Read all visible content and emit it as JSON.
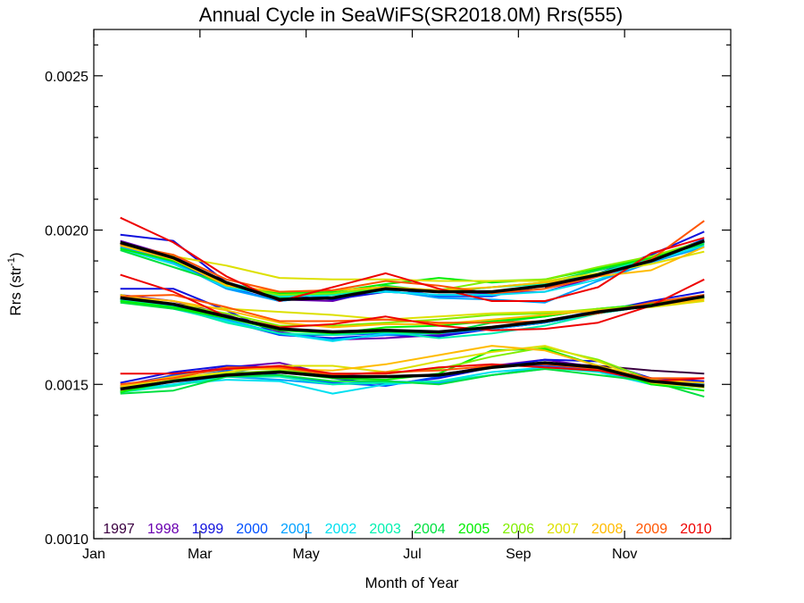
{
  "chart_data": {
    "type": "line",
    "title": "Annual Cycle in SeaWiFS(SR2018.0M) Rrs(555)",
    "xlabel": "Month of Year",
    "ylabel": "Rrs (str",
    "ylabel_sup": "-1",
    "ylabel_close": ")",
    "xlim": [
      0,
      12
    ],
    "ylim": [
      0.001,
      0.00265
    ],
    "x_ticks": [
      {
        "value": 0,
        "label": "Jan"
      },
      {
        "value": 2,
        "label": "Mar"
      },
      {
        "value": 4,
        "label": "May"
      },
      {
        "value": 6,
        "label": "Jul"
      },
      {
        "value": 8,
        "label": "Sep"
      },
      {
        "value": 10,
        "label": "Nov"
      }
    ],
    "y_ticks": [
      {
        "value": 0.001,
        "label": "0.0010"
      },
      {
        "value": 0.0015,
        "label": "0.0015"
      },
      {
        "value": 0.002,
        "label": "0.0020"
      },
      {
        "value": 0.0025,
        "label": "0.0025"
      }
    ],
    "x": [
      0.5,
      1.5,
      2.5,
      3.5,
      4.5,
      5.5,
      6.5,
      7.5,
      8.5,
      9.5,
      10.5,
      11.5
    ],
    "groups": [
      {
        "climatology": [
          0.00196,
          0.00191,
          0.00183,
          0.001775,
          0.00178,
          0.00181,
          0.0018,
          0.0018,
          0.00182,
          0.001855,
          0.0019,
          0.001965
        ],
        "series": [
          {
            "name": "1997",
            "color": "#3a0040",
            "values": [
              null,
              null,
              null,
              null,
              null,
              null,
              null,
              null,
              0.001815,
              0.00185,
              0.001905,
              0.00196
            ]
          },
          {
            "name": "1998",
            "color": "#6a00b0",
            "values": [
              0.001965,
              0.001915,
              0.00183,
              0.001775,
              0.00177,
              0.00181,
              0.0018,
              0.001795,
              0.0018,
              0.00185,
              0.0019,
              0.001965
            ]
          },
          {
            "name": "1999",
            "color": "#1010dd",
            "values": [
              0.001985,
              0.001965,
              0.00183,
              0.00179,
              0.001775,
              0.0018,
              0.00179,
              0.00179,
              0.00182,
              0.00186,
              0.00192,
              0.001995
            ]
          },
          {
            "name": "2000",
            "color": "#0050ff",
            "values": [
              0.00195,
              0.0019,
              0.001815,
              0.00177,
              0.00179,
              0.001815,
              0.001785,
              0.001785,
              0.001825,
              0.00186,
              0.001905,
              0.00197
            ]
          },
          {
            "name": "2001",
            "color": "#00a0ff",
            "values": [
              0.001945,
              0.001895,
              0.00181,
              0.00177,
              0.00179,
              0.001805,
              0.00178,
              0.001775,
              0.001765,
              0.001835,
              0.001895,
              0.001945
            ]
          },
          {
            "name": "2002",
            "color": "#00e0f0",
            "values": [
              0.00194,
              0.00189,
              0.001815,
              0.001785,
              0.00179,
              0.0018,
              0.00179,
              0.00179,
              0.0018,
              0.00184,
              0.0019,
              0.00195
            ]
          },
          {
            "name": "2003",
            "color": "#00f0b0",
            "values": [
              0.00195,
              0.001905,
              0.00183,
              0.00179,
              0.00179,
              0.001815,
              0.0018,
              0.001815,
              0.001825,
              0.00186,
              0.00191,
              0.00196
            ]
          },
          {
            "name": "2004",
            "color": "#00e040",
            "values": [
              0.001935,
              0.00188,
              0.001825,
              0.00178,
              0.00178,
              0.00182,
              0.0018,
              0.001815,
              0.00183,
              0.00187,
              0.00191,
              0.001955
            ]
          },
          {
            "name": "2005",
            "color": "#00ee00",
            "values": [
              0.00194,
              0.0019,
              0.001825,
              0.001795,
              0.0018,
              0.001825,
              0.001845,
              0.00183,
              0.00184,
              0.001875,
              0.00191,
              0.001965
            ]
          },
          {
            "name": "2006",
            "color": "#80ee00",
            "values": [
              0.00195,
              0.00191,
              0.00182,
              0.00179,
              0.001795,
              0.001815,
              0.001805,
              0.001835,
              0.00184,
              0.00188,
              0.001915,
              0.001965
            ]
          },
          {
            "name": "2007",
            "color": "#dde000",
            "values": [
              0.001955,
              0.001915,
              0.001885,
              0.001845,
              0.00184,
              0.00184,
              0.001835,
              0.001835,
              0.001835,
              0.00186,
              0.00189,
              0.00193
            ]
          },
          {
            "name": "2008",
            "color": "#ffbb00",
            "values": [
              0.00195,
              0.001905,
              0.00182,
              0.0018,
              0.001805,
              0.001815,
              0.001805,
              0.001815,
              0.00183,
              0.00185,
              0.00187,
              0.001945
            ]
          },
          {
            "name": "2009",
            "color": "#ff5500",
            "values": [
              0.001955,
              0.00192,
              0.00184,
              0.0018,
              0.001805,
              0.001835,
              0.00182,
              0.001795,
              0.00181,
              0.00185,
              0.001905,
              0.00203
            ]
          },
          {
            "name": "2010",
            "color": "#ee0000",
            "values": [
              0.00204,
              0.00196,
              0.00185,
              0.00177,
              0.001815,
              0.00186,
              0.00181,
              0.00177,
              0.00177,
              0.001815,
              0.001925,
              0.001975
            ]
          }
        ]
      },
      {
        "climatology": [
          0.00178,
          0.00176,
          0.00172,
          0.00168,
          0.00167,
          0.001675,
          0.00167,
          0.001685,
          0.001705,
          0.001735,
          0.001755,
          0.001785
        ],
        "series": [
          {
            "name": "1997",
            "color": "#3a0040",
            "values": [
              null,
              null,
              null,
              null,
              null,
              null,
              null,
              null,
              0.0017,
              0.00173,
              0.001755,
              0.001785
            ]
          },
          {
            "name": "1998",
            "color": "#6a00b0",
            "values": [
              0.00179,
              0.00177,
              0.001725,
              0.00167,
              0.001645,
              0.00165,
              0.00166,
              0.00168,
              0.0017,
              0.00173,
              0.00176,
              0.00179
            ]
          },
          {
            "name": "1999",
            "color": "#1010dd",
            "values": [
              0.00181,
              0.00181,
              0.00174,
              0.00166,
              0.00165,
              0.00166,
              0.001655,
              0.00168,
              0.0017,
              0.001735,
              0.00177,
              0.0018
            ]
          },
          {
            "name": "2000",
            "color": "#0050ff",
            "values": [
              0.00178,
              0.00176,
              0.001705,
              0.00166,
              0.00166,
              0.001665,
              0.001665,
              0.001685,
              0.001705,
              0.00174,
              0.00176,
              0.00179
            ]
          },
          {
            "name": "2001",
            "color": "#00a0ff",
            "values": [
              0.001775,
              0.001755,
              0.00171,
              0.001665,
              0.001645,
              0.00166,
              0.001665,
              0.00168,
              0.0017,
              0.00173,
              0.00176,
              0.001785
            ]
          },
          {
            "name": "2002",
            "color": "#00e0f0",
            "values": [
              0.00177,
              0.001745,
              0.001705,
              0.001665,
              0.00164,
              0.001665,
              0.00167,
              0.001685,
              0.001705,
              0.00173,
              0.001755,
              0.00178
            ]
          },
          {
            "name": "2003",
            "color": "#00f0b0",
            "values": [
              0.001775,
              0.00175,
              0.0017,
              0.001665,
              0.00166,
              0.00167,
              0.00165,
              0.001665,
              0.00169,
              0.00173,
              0.001755,
              0.001785
            ]
          },
          {
            "name": "2004",
            "color": "#00e040",
            "values": [
              0.001765,
              0.001745,
              0.001715,
              0.00168,
              0.001665,
              0.00167,
              0.001665,
              0.0017,
              0.00172,
              0.001745,
              0.00176,
              0.00178
            ]
          },
          {
            "name": "2005",
            "color": "#00ee00",
            "values": [
              0.00177,
              0.00175,
              0.001715,
              0.001675,
              0.001665,
              0.001685,
              0.00169,
              0.001705,
              0.00172,
              0.001745,
              0.00176,
              0.001785
            ]
          },
          {
            "name": "2006",
            "color": "#80ee00",
            "values": [
              0.00178,
              0.00176,
              0.00173,
              0.00169,
              0.00169,
              0.0017,
              0.00171,
              0.001725,
              0.00173,
              0.001745,
              0.001755,
              0.00178
            ]
          },
          {
            "name": "2007",
            "color": "#dde000",
            "values": [
              0.00179,
              0.00176,
              0.001745,
              0.001735,
              0.001725,
              0.00171,
              0.00172,
              0.00173,
              0.001735,
              0.00174,
              0.00175,
              0.00177
            ]
          },
          {
            "name": "2008",
            "color": "#ffbb00",
            "values": [
              0.001785,
              0.00177,
              0.00174,
              0.0017,
              0.001685,
              0.001695,
              0.001695,
              0.00171,
              0.001725,
              0.00174,
              0.001755,
              0.001775
            ]
          },
          {
            "name": "2009",
            "color": "#ff5500",
            "values": [
              0.001785,
              0.00179,
              0.00175,
              0.001705,
              0.001705,
              0.00171,
              0.0017,
              0.0017,
              0.001705,
              0.00173,
              0.001765,
              0.00179
            ]
          },
          {
            "name": "2010",
            "color": "#ee0000",
            "values": [
              0.001855,
              0.0018,
              0.00172,
              0.001685,
              0.001695,
              0.00172,
              0.00169,
              0.001675,
              0.00168,
              0.0017,
              0.001755,
              0.00184
            ]
          }
        ]
      },
      {
        "climatology": [
          0.001485,
          0.00151,
          0.00153,
          0.00154,
          0.001525,
          0.001525,
          0.00153,
          0.001555,
          0.00157,
          0.001555,
          0.00151,
          0.001495
        ],
        "series": [
          {
            "name": "1997",
            "color": "#3a0040",
            "values": [
              null,
              null,
              null,
              null,
              null,
              null,
              null,
              null,
              0.00157,
              0.00156,
              0.001545,
              0.001535
            ]
          },
          {
            "name": "1998",
            "color": "#6a00b0",
            "values": [
              0.001495,
              0.00153,
              0.001555,
              0.00157,
              0.00153,
              0.001525,
              0.00153,
              0.00156,
              0.00158,
              0.001555,
              0.00152,
              0.0015
            ]
          },
          {
            "name": "1999",
            "color": "#1010dd",
            "values": [
              0.001505,
              0.00154,
              0.00156,
              0.001555,
              0.00152,
              0.0015,
              0.00152,
              0.001555,
              0.00158,
              0.001575,
              0.00152,
              0.00151
            ]
          },
          {
            "name": "2000",
            "color": "#0050ff",
            "values": [
              0.00149,
              0.00153,
              0.001545,
              0.00153,
              0.001505,
              0.001495,
              0.001525,
              0.00156,
              0.00156,
              0.001545,
              0.001505,
              0.001495
            ]
          },
          {
            "name": "2001",
            "color": "#00a0ff",
            "values": [
              0.00148,
              0.0015,
              0.001525,
              0.001515,
              0.0015,
              0.00151,
              0.001505,
              0.00153,
              0.001555,
              0.001545,
              0.00151,
              0.0015
            ]
          },
          {
            "name": "2002",
            "color": "#00e0f0",
            "values": [
              0.001475,
              0.0015,
              0.001515,
              0.00151,
              0.00147,
              0.0015,
              0.00151,
              0.00154,
              0.001555,
              0.00154,
              0.0015,
              0.00149
            ]
          },
          {
            "name": "2003",
            "color": "#00f0b0",
            "values": [
              0.001475,
              0.001495,
              0.001525,
              0.001525,
              0.0015,
              0.001505,
              0.00151,
              0.00153,
              0.00155,
              0.001545,
              0.00151,
              0.00149
            ]
          },
          {
            "name": "2004",
            "color": "#00e040",
            "values": [
              0.00147,
              0.00148,
              0.001525,
              0.00153,
              0.00151,
              0.00151,
              0.0015,
              0.00153,
              0.00155,
              0.00153,
              0.00151,
              0.00146
            ]
          },
          {
            "name": "2005",
            "color": "#00ee00",
            "values": [
              0.001475,
              0.00151,
              0.00153,
              0.00154,
              0.00152,
              0.001515,
              0.001535,
              0.00161,
              0.001615,
              0.00156,
              0.0015,
              0.00148
            ]
          },
          {
            "name": "2006",
            "color": "#80ee00",
            "values": [
              0.00148,
              0.001515,
              0.001535,
              0.001545,
              0.001535,
              0.001535,
              0.00155,
              0.00159,
              0.00162,
              0.00158,
              0.001515,
              0.001495
            ]
          },
          {
            "name": "2007",
            "color": "#dde000",
            "values": [
              0.00149,
              0.00152,
              0.00154,
              0.00156,
              0.00156,
              0.00154,
              0.001575,
              0.001605,
              0.001625,
              0.001575,
              0.001505,
              0.00149
            ]
          },
          {
            "name": "2008",
            "color": "#ffbb00",
            "values": [
              0.001495,
              0.001525,
              0.00155,
              0.00155,
              0.001545,
              0.001565,
              0.001595,
              0.001625,
              0.00161,
              0.00156,
              0.001515,
              0.001505
            ]
          },
          {
            "name": "2009",
            "color": "#ff5500",
            "values": [
              0.0015,
              0.00152,
              0.001555,
              0.001555,
              0.00153,
              0.00154,
              0.001545,
              0.00156,
              0.001565,
              0.00155,
              0.00152,
              0.00152
            ]
          },
          {
            "name": "2010",
            "color": "#ee0000",
            "values": [
              0.001535,
              0.001535,
              0.00155,
              0.00156,
              0.001535,
              0.001535,
              0.001555,
              0.001565,
              0.001555,
              0.001545,
              0.00151,
              0.00152
            ]
          }
        ]
      }
    ],
    "climatology_color": "#000000",
    "legend": [
      {
        "label": "1997",
        "color": "#3a0040"
      },
      {
        "label": "1998",
        "color": "#6a00b0"
      },
      {
        "label": "1999",
        "color": "#1010dd"
      },
      {
        "label": "2000",
        "color": "#0050ff"
      },
      {
        "label": "2001",
        "color": "#00a0ff"
      },
      {
        "label": "2002",
        "color": "#00e0f0"
      },
      {
        "label": "2003",
        "color": "#00f0b0"
      },
      {
        "label": "2004",
        "color": "#00e040"
      },
      {
        "label": "2005",
        "color": "#00ee00"
      },
      {
        "label": "2006",
        "color": "#80ee00"
      },
      {
        "label": "2007",
        "color": "#dde000"
      },
      {
        "label": "2008",
        "color": "#ffbb00"
      },
      {
        "label": "2009",
        "color": "#ff5500"
      },
      {
        "label": "2010",
        "color": "#ee0000"
      }
    ],
    "legend_placement": "bottom inside plot",
    "grid": false
  }
}
